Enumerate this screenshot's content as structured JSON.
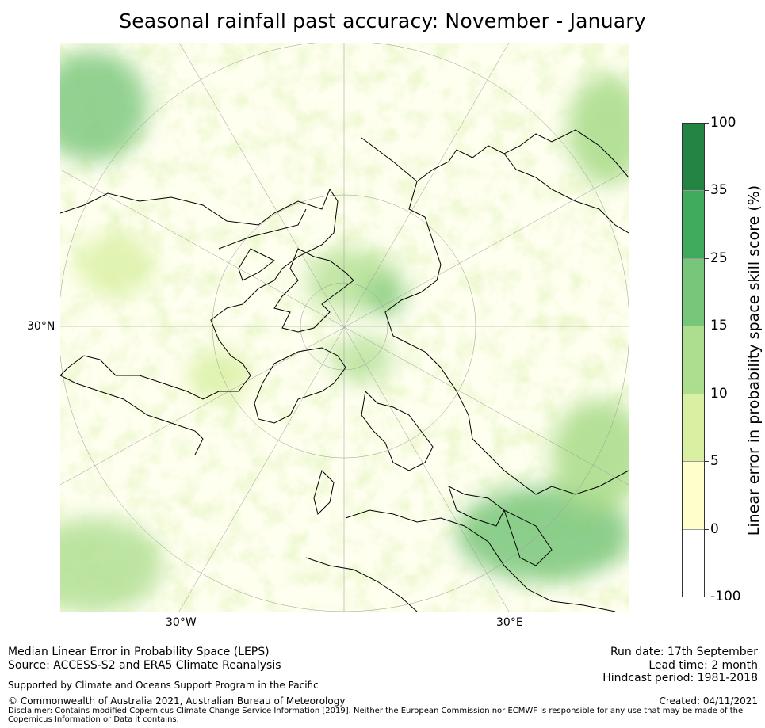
{
  "title": "Seasonal rainfall past accuracy: November - January",
  "map": {
    "label_30n": "30°N",
    "label_30w": "30°W",
    "label_30e": "30°E"
  },
  "colorbar": {
    "title": "Linear error in probability space skill score (%)",
    "ticks": [
      "100",
      "35",
      "25",
      "15",
      "10",
      "5",
      "0",
      "-100"
    ],
    "colors": [
      "#238443",
      "#41ab5d",
      "#78c679",
      "#addd8e",
      "#d9f0a3",
      "#ffffcc",
      "#ffffff"
    ]
  },
  "footer": {
    "line1": "Median Linear Error in Probability Space (LEPS)",
    "line2": "Source: ACCESS-S2 and ERA5 Climate Reanalysis",
    "support": "Supported by Climate and Oceans Support Program in the Pacific",
    "copyright": "© Commonwealth of Australia 2021, Australian Bureau of Meteorology",
    "disclaimer": "Disclaimer: Contains modified Copernicus Climate Change Service Information [2019]. Neither the European Commission nor ECMWF is responsible for any use that may be made of the Copernicus Information or Data it contains.",
    "run_date": "Run date: 17th September",
    "lead_time": "Lead time: 2 month",
    "hindcast": "Hindcast period: 1981-2018",
    "created": "Created: 04/11/2021"
  }
}
